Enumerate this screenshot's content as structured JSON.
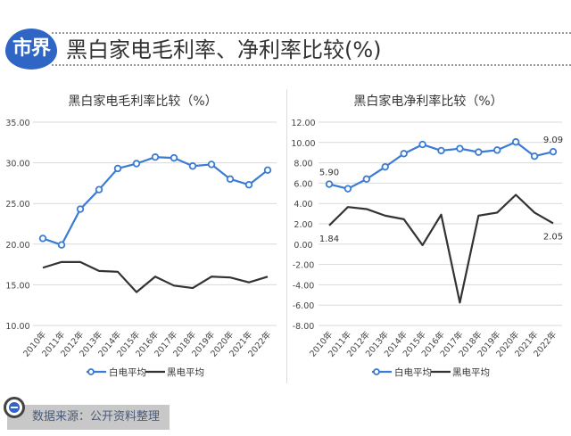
{
  "header": {
    "logo": "市界",
    "title": "黑白家电毛利率、净利率比较(%)"
  },
  "footer": {
    "source": "数据来源：公开资料整理"
  },
  "chart_data": [
    {
      "type": "line",
      "title": "黑白家电毛利率比较（%）",
      "ylim": [
        10,
        35
      ],
      "yticks": [
        "10.00",
        "15.00",
        "20.00",
        "25.00",
        "30.00",
        "35.00"
      ],
      "ytick_values": [
        10,
        15,
        20,
        25,
        30,
        35
      ],
      "categories": [
        "2010年",
        "2011年",
        "2012年",
        "2013年",
        "2014年",
        "2015年",
        "2016年",
        "2017年",
        "2018年",
        "2019年",
        "2020年",
        "2021年",
        "2022年"
      ],
      "series": [
        {
          "name": "白电平均",
          "color": "#3a7bd5",
          "marker": true,
          "values": [
            20.7,
            19.9,
            24.3,
            26.7,
            29.3,
            29.9,
            30.7,
            30.6,
            29.6,
            29.8,
            28.0,
            27.3,
            29.1
          ]
        },
        {
          "name": "黑电平均",
          "color": "#333333",
          "marker": false,
          "values": [
            17.1,
            17.8,
            17.8,
            16.7,
            16.6,
            14.1,
            16.0,
            14.9,
            14.6,
            16.0,
            15.9,
            15.3,
            16.0
          ]
        }
      ],
      "annotations": [],
      "legend": "bottom",
      "grid": true
    },
    {
      "type": "line",
      "title": "黑白家电净利率比较（%）",
      "ylim": [
        -8,
        12
      ],
      "yticks": [
        "-8.00",
        "-6.00",
        "-4.00",
        "-2.00",
        "0.00",
        "2.00",
        "4.00",
        "6.00",
        "8.00",
        "10.00",
        "12.00"
      ],
      "ytick_values": [
        -8,
        -6,
        -4,
        -2,
        0,
        2,
        4,
        6,
        8,
        10,
        12
      ],
      "categories": [
        "2010年",
        "2011年",
        "2012年",
        "2013年",
        "2014年",
        "2015年",
        "2016年",
        "2017年",
        "2018年",
        "2019年",
        "2020年",
        "2021年",
        "2022年"
      ],
      "series": [
        {
          "name": "白电平均",
          "color": "#3a7bd5",
          "marker": true,
          "values": [
            5.9,
            5.45,
            6.4,
            7.6,
            8.9,
            9.8,
            9.2,
            9.4,
            9.05,
            9.25,
            10.05,
            8.65,
            9.09
          ]
        },
        {
          "name": "黑电平均",
          "color": "#333333",
          "marker": false,
          "values": [
            1.84,
            3.65,
            3.45,
            2.8,
            2.45,
            -0.1,
            2.9,
            -5.75,
            2.8,
            3.1,
            4.85,
            3.1,
            2.05
          ]
        }
      ],
      "annotations": [
        {
          "series": 0,
          "index": 0,
          "text": "5.90",
          "pos": "above"
        },
        {
          "series": 0,
          "index": 12,
          "text": "9.09",
          "pos": "above"
        },
        {
          "series": 1,
          "index": 0,
          "text": "1.84",
          "pos": "below"
        },
        {
          "series": 1,
          "index": 12,
          "text": "2.05",
          "pos": "below"
        }
      ],
      "legend": "bottom",
      "grid": true
    }
  ]
}
